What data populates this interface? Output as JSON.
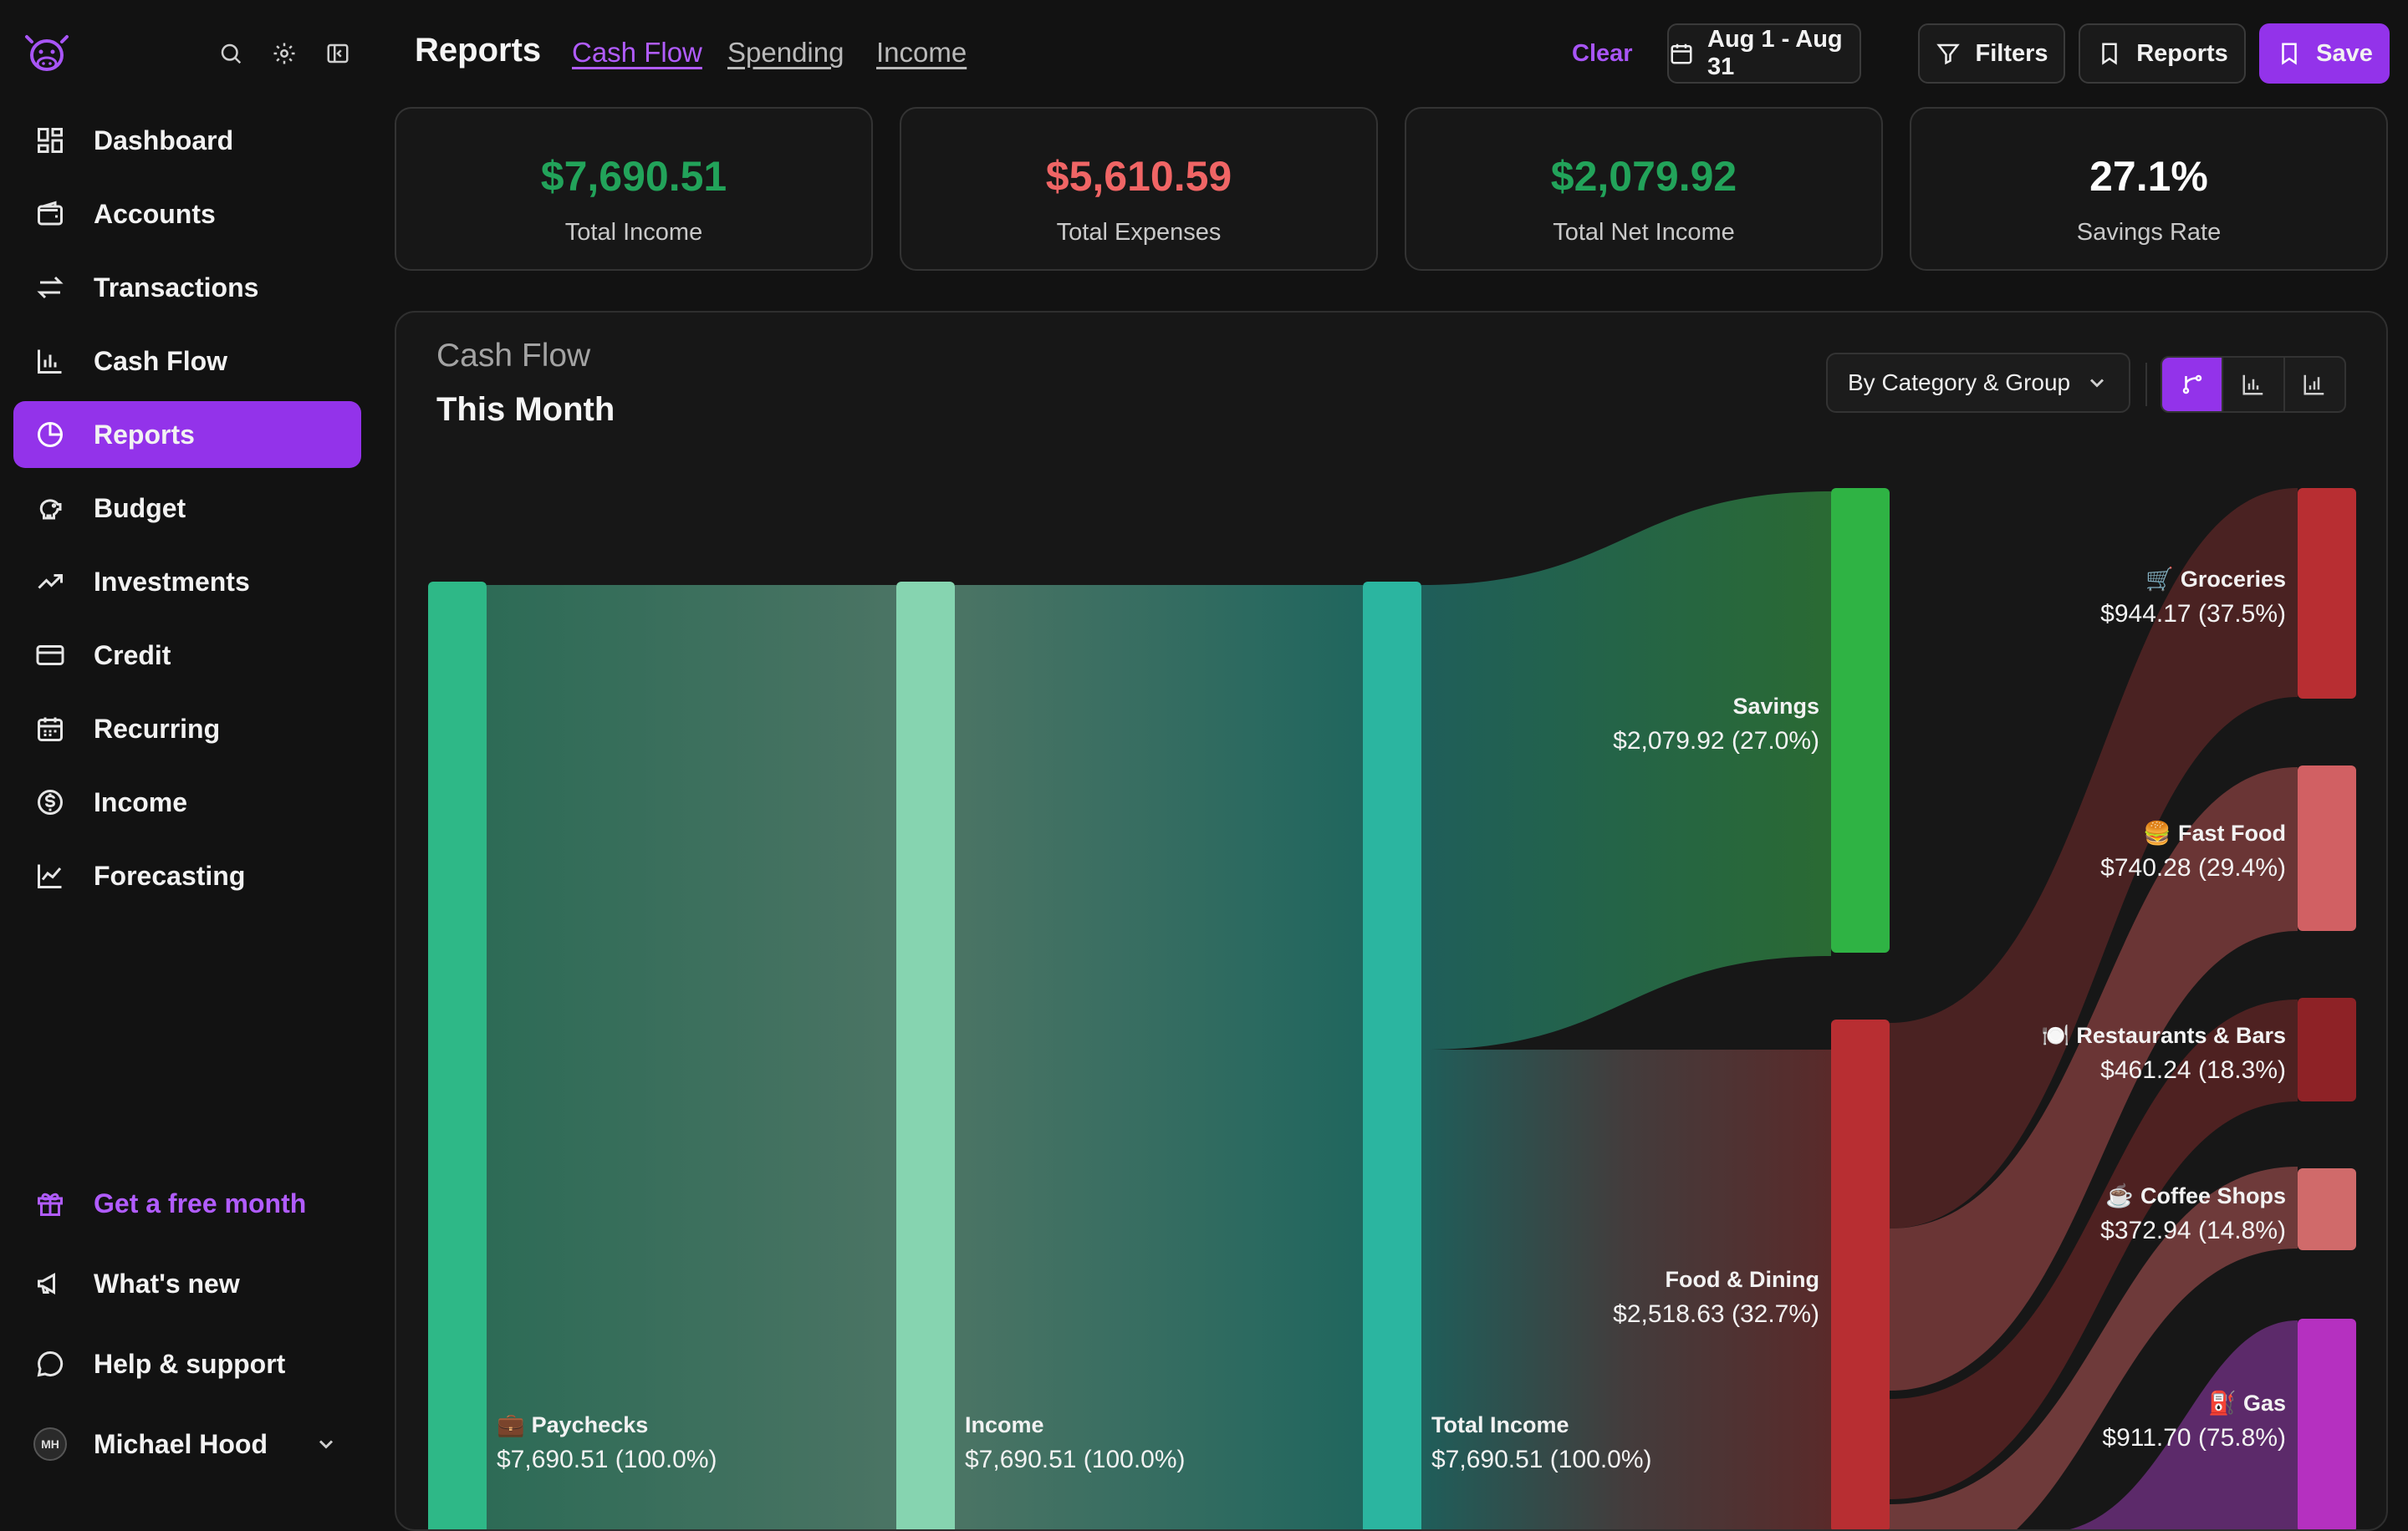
{
  "sidebar": {
    "items": [
      {
        "label": "Dashboard"
      },
      {
        "label": "Accounts"
      },
      {
        "label": "Transactions"
      },
      {
        "label": "Cash Flow"
      },
      {
        "label": "Reports"
      },
      {
        "label": "Budget"
      },
      {
        "label": "Investments"
      },
      {
        "label": "Credit"
      },
      {
        "label": "Recurring"
      },
      {
        "label": "Income"
      },
      {
        "label": "Forecasting"
      }
    ],
    "promo": "Get a free month",
    "whats_new": "What's new",
    "help": "Help & support",
    "user": {
      "initials": "MH",
      "name": "Michael Hood"
    }
  },
  "header": {
    "title": "Reports",
    "tabs": [
      "Cash Flow",
      "Spending",
      "Income"
    ],
    "clear": "Clear",
    "date_range": "Aug 1 - Aug 31",
    "filters": "Filters",
    "reports": "Reports",
    "save": "Save"
  },
  "stats": [
    {
      "value": "$7,690.51",
      "label": "Total Income",
      "color": "#22a35a"
    },
    {
      "value": "$5,610.59",
      "label": "Total Expenses",
      "color": "#f06565"
    },
    {
      "value": "$2,079.92",
      "label": "Total Net Income",
      "color": "#22a35a"
    },
    {
      "value": "27.1%",
      "label": "Savings Rate",
      "color": "#ffffff"
    }
  ],
  "panel": {
    "title": "Cash Flow",
    "subtitle": "This Month",
    "group_by": "By Category & Group"
  },
  "sankey": {
    "nodes": [
      {
        "icon": "💼",
        "name": "Paychecks",
        "amount": "$7,690.51 (100.0%)"
      },
      {
        "name": "Income",
        "amount": "$7,690.51 (100.0%)"
      },
      {
        "name": "Total Income",
        "amount": "$7,690.51 (100.0%)"
      },
      {
        "name": "Savings",
        "amount": "$2,079.92 (27.0%)"
      },
      {
        "name": "Food & Dining",
        "amount": "$2,518.63 (32.7%)"
      },
      {
        "icon": "🛒",
        "name": "Groceries",
        "amount": "$944.17 (37.5%)"
      },
      {
        "icon": "🍔",
        "name": "Fast Food",
        "amount": "$740.28 (29.4%)"
      },
      {
        "icon": "🍽️",
        "name": "Restaurants & Bars",
        "amount": "$461.24 (18.3%)"
      },
      {
        "icon": "☕",
        "name": "Coffee Shops",
        "amount": "$372.94 (14.8%)"
      },
      {
        "icon": "⛽",
        "name": "Gas",
        "amount": "$911.70 (75.8%)"
      }
    ]
  },
  "colors": {
    "accent": "#9333ea",
    "income_green": "#22a35a",
    "expense_red": "#f06565"
  }
}
